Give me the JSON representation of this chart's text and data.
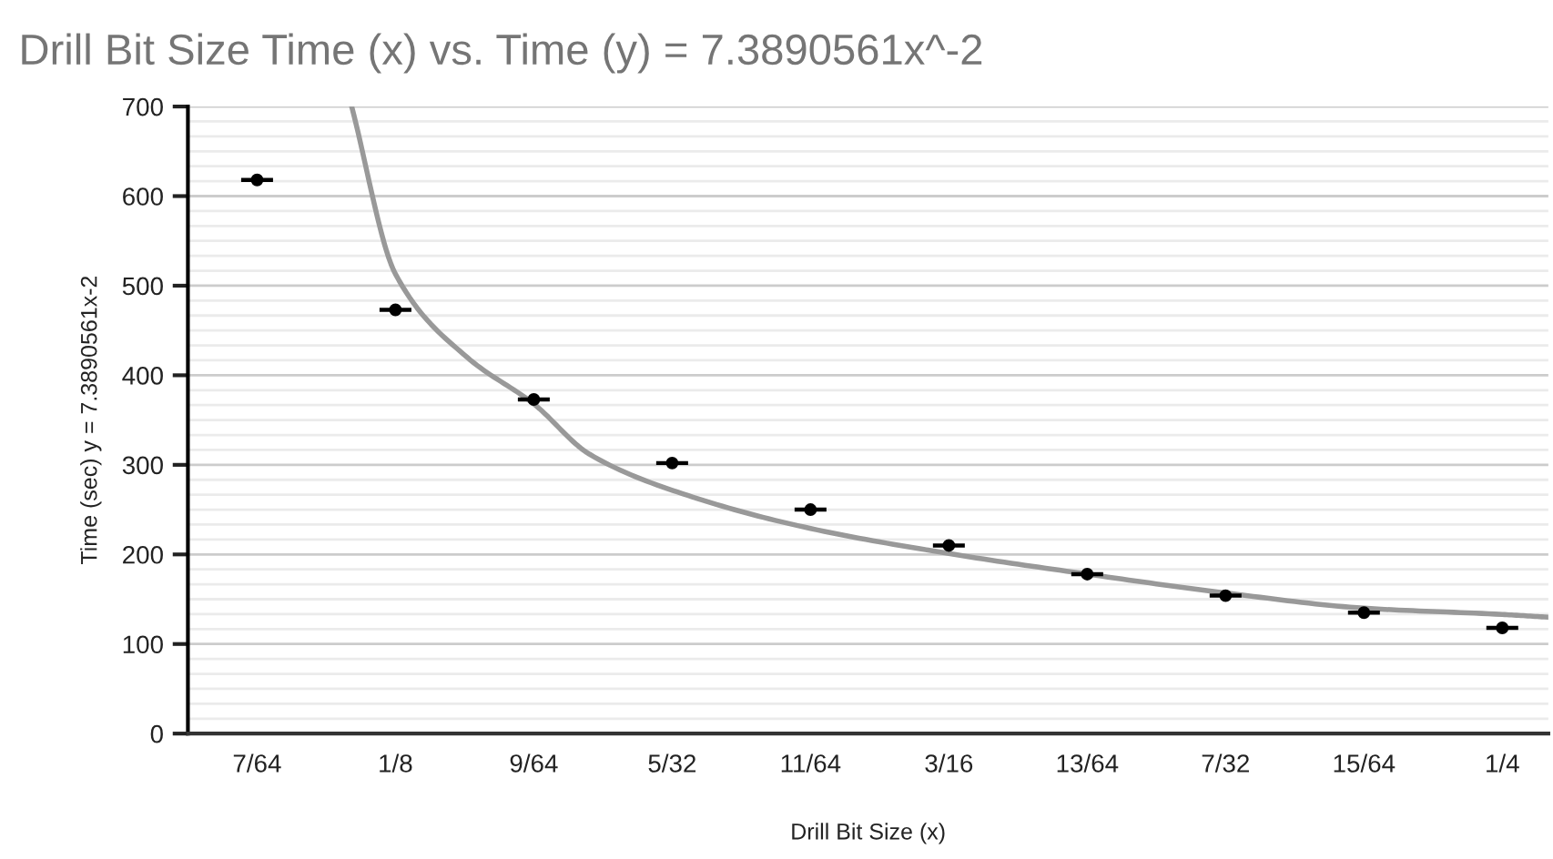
{
  "chart_data": {
    "type": "scatter",
    "title": "Drill Bit Size Time (x) vs. Time (y) = 7.3890561x^-2",
    "xlabel": "Drill Bit Size (x)",
    "ylabel": "Time (sec) y = 7.3890561x-2",
    "xlim": [
      0.1015625,
      0.2552
    ],
    "ylim": [
      0,
      700
    ],
    "xticks": [
      {
        "value": 0.109375,
        "label": "7/64"
      },
      {
        "value": 0.125,
        "label": "1/8"
      },
      {
        "value": 0.140625,
        "label": "9/64"
      },
      {
        "value": 0.15625,
        "label": "5/32"
      },
      {
        "value": 0.171875,
        "label": "11/64"
      },
      {
        "value": 0.1875,
        "label": "3/16"
      },
      {
        "value": 0.203125,
        "label": "13/64"
      },
      {
        "value": 0.21875,
        "label": "7/32"
      },
      {
        "value": 0.234375,
        "label": "15/64"
      },
      {
        "value": 0.25,
        "label": "1/4"
      }
    ],
    "yticks": [
      0,
      100,
      200,
      300,
      400,
      500,
      600,
      700
    ],
    "grid": "y",
    "marker": "circle",
    "series": [
      {
        "color": "#000000",
        "x": [
          0.109375,
          0.125,
          0.140625,
          0.15625,
          0.171875,
          0.1875,
          0.203125,
          0.21875,
          0.234375,
          0.25
        ],
        "values": [
          618,
          473,
          373,
          302,
          250,
          210,
          178,
          154,
          135,
          118
        ],
        "xerrors": [
          0.0018,
          0.0018,
          0.0018,
          0.0018,
          0.0018,
          0.0018,
          0.0018,
          0.0018,
          0.0018,
          0.0018
        ]
      },
      {
        "type": "line",
        "color": "#999999",
        "marker": "none",
        "x": [
          0.12006,
          0.125,
          0.1331,
          0.140625,
          0.1469,
          0.1586,
          0.171875,
          0.1875,
          0.203125,
          0.21875,
          0.234375,
          0.25,
          0.255
        ],
        "values": [
          700,
          513,
          420,
          368,
          312,
          264,
          229,
          201,
          178,
          157,
          140,
          133,
          130
        ]
      }
    ]
  }
}
